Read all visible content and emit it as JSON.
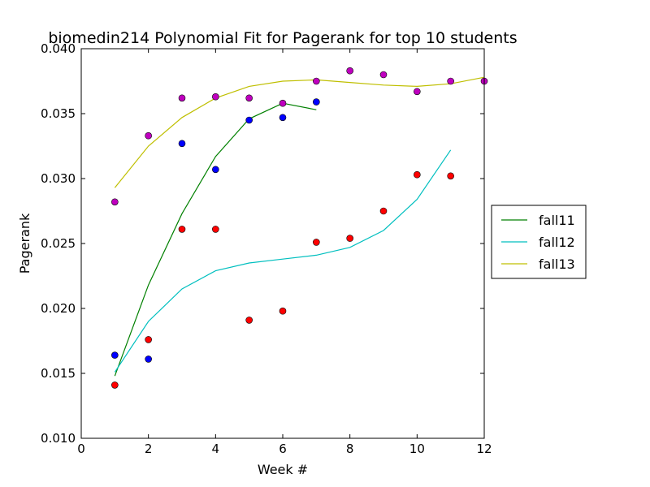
{
  "chart_data": {
    "type": "line",
    "title": "biomedin214 Polynomial Fit for Pagerank for top 10 students",
    "xlabel": "Week #",
    "ylabel": "Pagerank",
    "xlim": [
      0,
      12
    ],
    "ylim": [
      0.01,
      0.04
    ],
    "xticks": [
      0,
      2,
      4,
      6,
      8,
      10,
      12
    ],
    "xtick_labels": [
      "0",
      "2",
      "4",
      "6",
      "8",
      "10",
      "12"
    ],
    "yticks": [
      0.01,
      0.015,
      0.02,
      0.025,
      0.03,
      0.035,
      0.04
    ],
    "ytick_labels": [
      "0.010",
      "0.015",
      "0.020",
      "0.025",
      "0.030",
      "0.035",
      "0.040"
    ],
    "grid": false,
    "legend_position": "outside-right",
    "series": [
      {
        "name": "fall11",
        "color": "#008000",
        "fit": {
          "x": [
            1,
            2,
            3,
            4,
            5,
            6,
            7
          ],
          "y": [
            0.0148,
            0.0218,
            0.0273,
            0.0317,
            0.0346,
            0.0358,
            0.0353
          ]
        },
        "points": {
          "color": "#0000ff",
          "x": [
            1,
            2,
            3,
            4,
            5,
            6,
            7
          ],
          "y": [
            0.0164,
            0.0161,
            0.0327,
            0.0307,
            0.0345,
            0.0347,
            0.0359
          ]
        }
      },
      {
        "name": "fall12",
        "color": "#00bfbf",
        "fit": {
          "x": [
            1,
            2,
            3,
            4,
            5,
            6,
            7,
            8,
            9,
            10,
            11
          ],
          "y": [
            0.0151,
            0.019,
            0.0215,
            0.0229,
            0.0235,
            0.0238,
            0.0241,
            0.0247,
            0.026,
            0.0284,
            0.0322
          ]
        },
        "points": {
          "color": "#ff0000",
          "x": [
            1,
            2,
            3,
            4,
            5,
            6,
            7,
            8,
            9,
            10,
            11
          ],
          "y": [
            0.0141,
            0.0176,
            0.0261,
            0.0261,
            0.0191,
            0.0198,
            0.0251,
            0.0254,
            0.0275,
            0.0303,
            0.0302
          ]
        }
      },
      {
        "name": "fall13",
        "color": "#bfbf00",
        "fit": {
          "x": [
            1,
            2,
            3,
            4,
            5,
            6,
            7,
            8,
            9,
            10,
            11,
            12
          ],
          "y": [
            0.0293,
            0.0325,
            0.0347,
            0.0362,
            0.0371,
            0.0375,
            0.0376,
            0.0374,
            0.0372,
            0.0371,
            0.0373,
            0.0378
          ]
        },
        "points": {
          "color": "#bf00bf",
          "x": [
            1,
            2,
            3,
            4,
            5,
            6,
            7,
            8,
            9,
            10,
            11,
            12
          ],
          "y": [
            0.0282,
            0.0333,
            0.0362,
            0.0363,
            0.0362,
            0.0358,
            0.0375,
            0.0383,
            0.038,
            0.0367,
            0.0375,
            0.0375
          ]
        }
      }
    ]
  }
}
